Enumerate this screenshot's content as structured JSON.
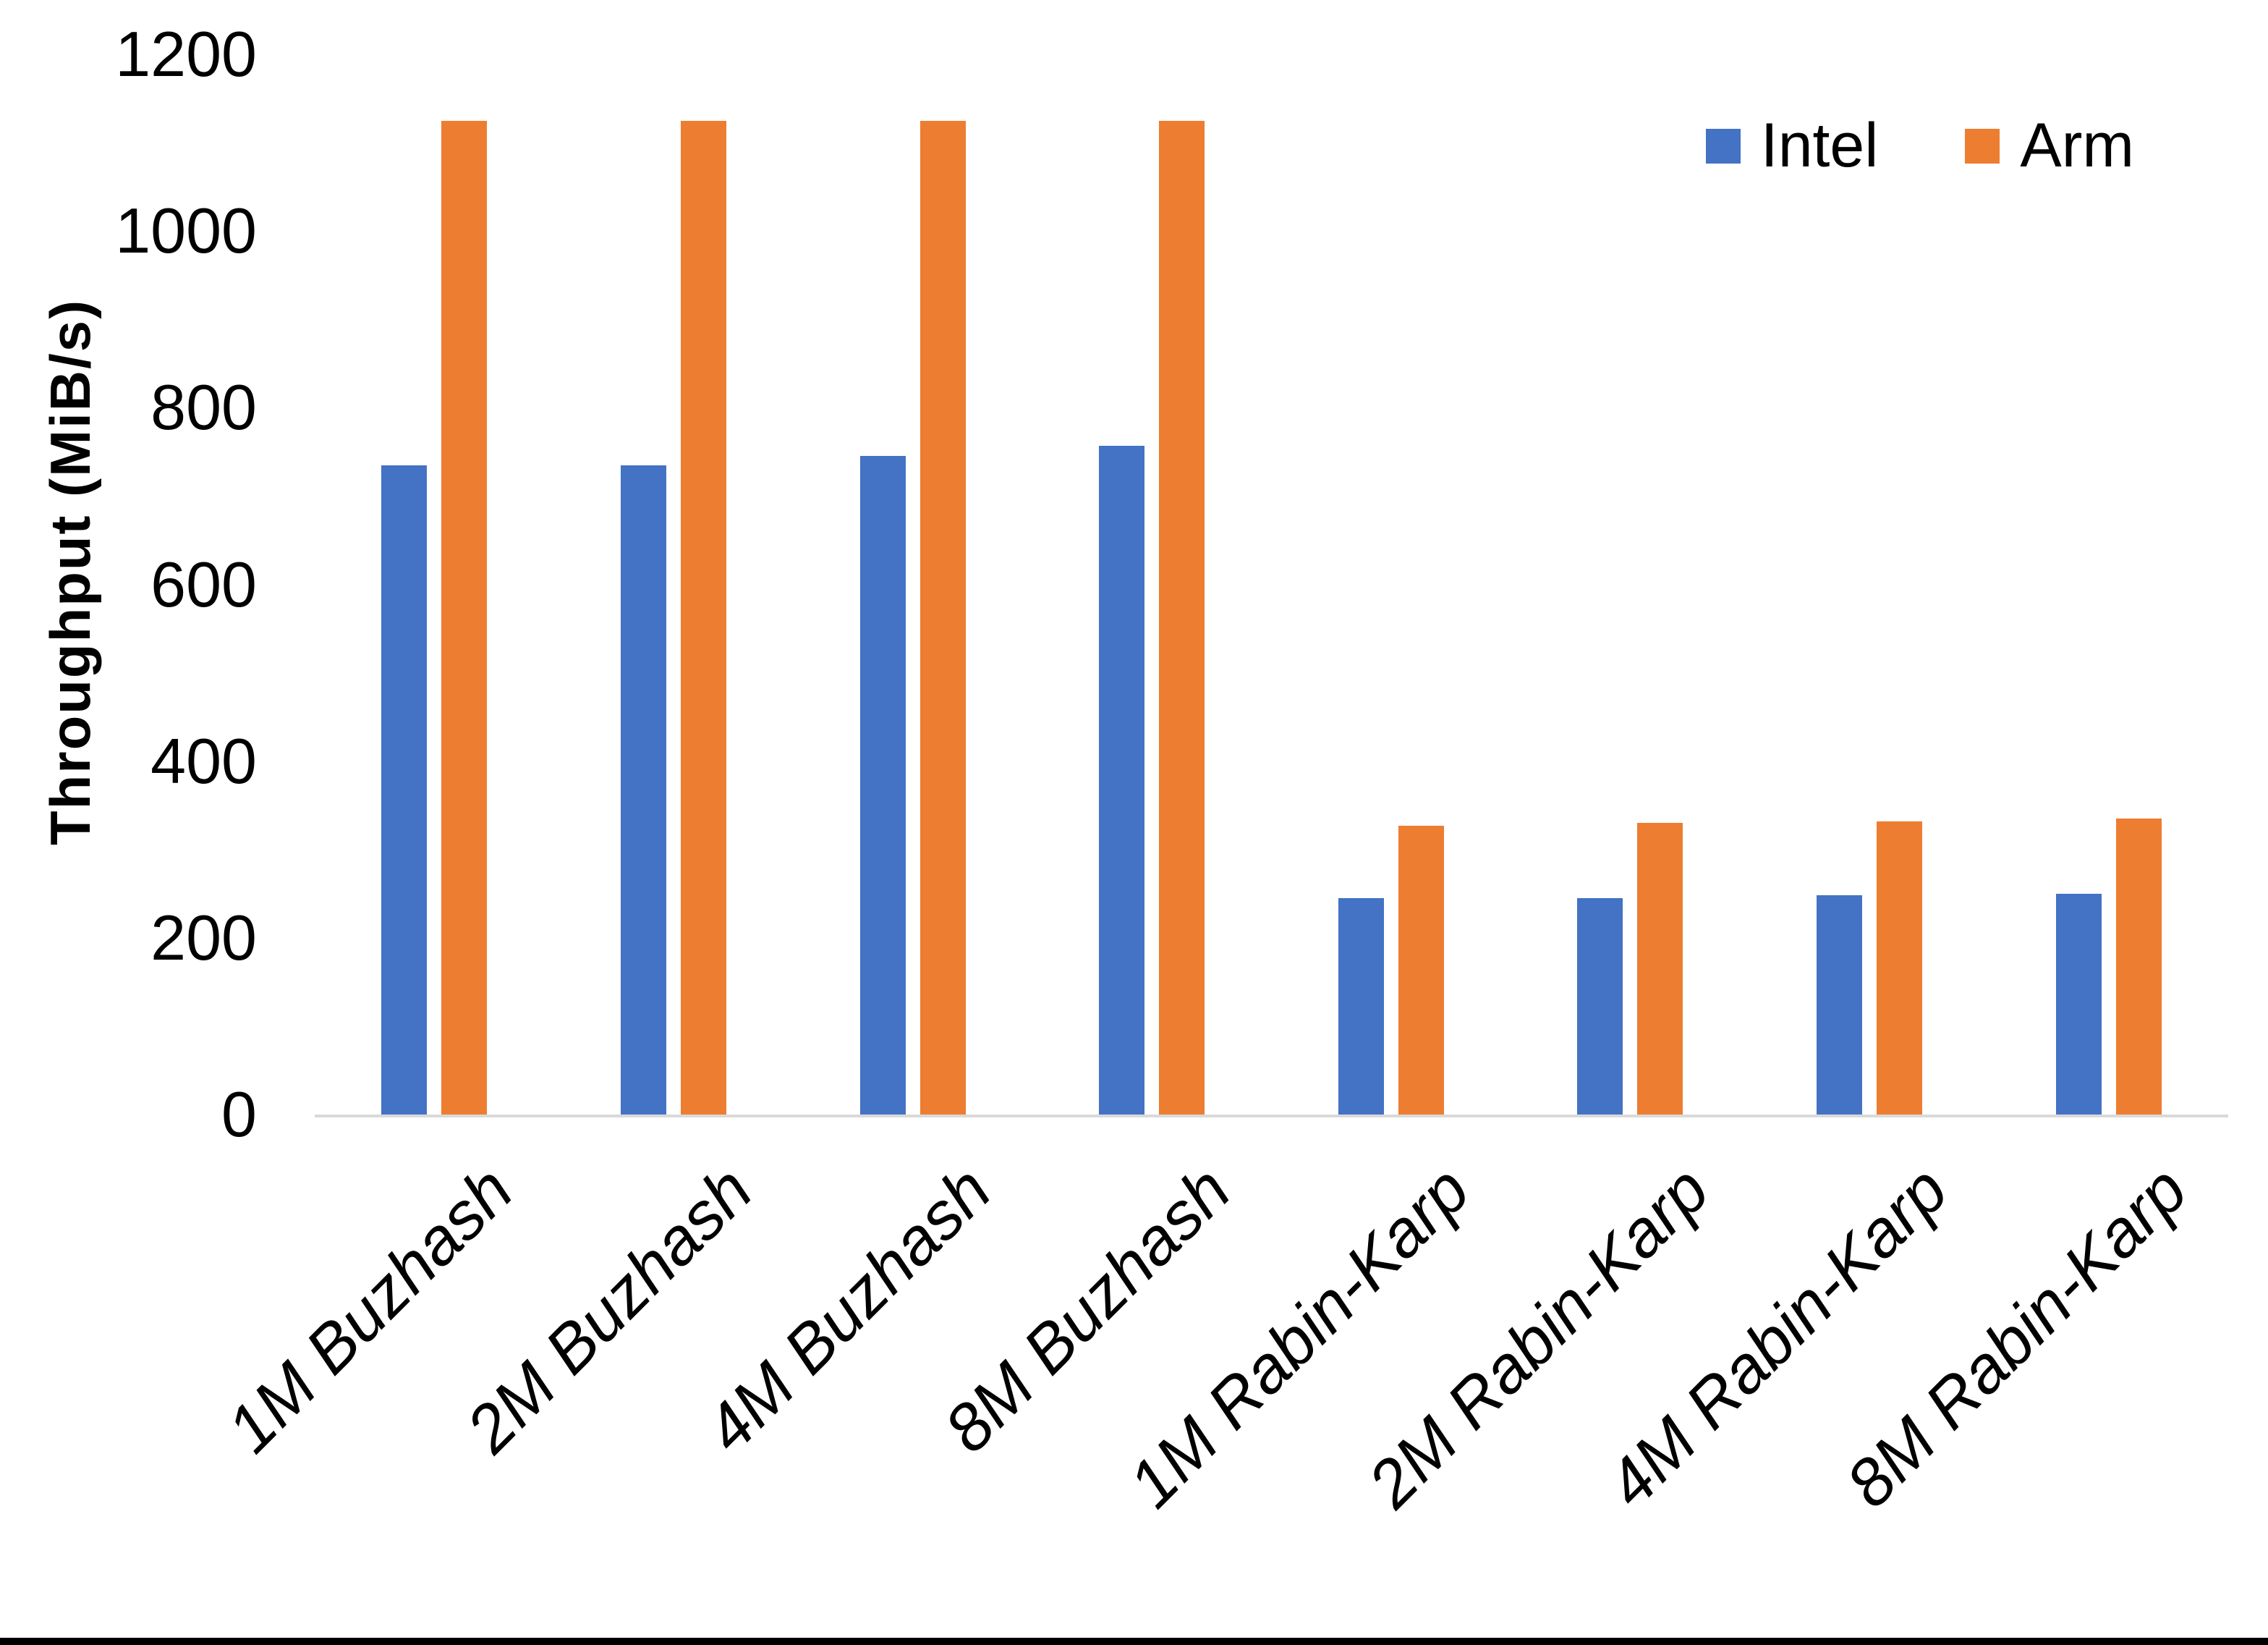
{
  "chart_data": {
    "type": "bar",
    "title": "",
    "xlabel": "",
    "ylabel": "Throughput (MiB/s)",
    "ylim": [
      0,
      1200
    ],
    "yticks": [
      0,
      200,
      400,
      600,
      800,
      1000,
      1200
    ],
    "grid": false,
    "legend_position": "top-right",
    "axis_line_color": "#d9d9d9",
    "categories": [
      "1M Buzhash",
      "2M Buzhash",
      "4M Buzhash",
      "8M Buzhash",
      "1M Rabin-Karp",
      "2M Rabin-Karp",
      "4M Rabin-Karp",
      "8M Rabin-Karp"
    ],
    "series": [
      {
        "name": "Intel",
        "color": "#4472C4",
        "values": [
          735,
          735,
          745,
          757,
          245,
          245,
          248,
          250
        ]
      },
      {
        "name": "Arm",
        "color": "#ED7D31",
        "values": [
          1125,
          1125,
          1125,
          1125,
          327,
          330,
          332,
          335
        ]
      }
    ]
  }
}
